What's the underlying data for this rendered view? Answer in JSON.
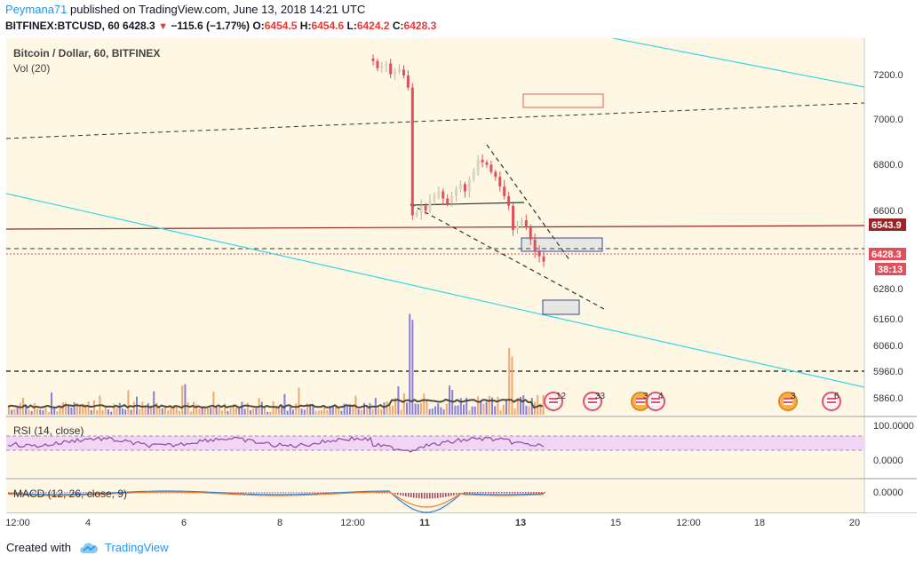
{
  "header": {
    "author": "Peymana71",
    "published_text": "published on TradingView.com, June 13, 2018 14:21 UTC",
    "symbol": "BITFINEX:BTCUSD, 60",
    "last": "6428.3",
    "change": "−115.6 (−1.77%)",
    "o_label": "O:",
    "o": "6454.5",
    "h_label": "H:",
    "h": "6454.6",
    "l_label": "L:",
    "l": "6424.2",
    "c_label": "C:",
    "c": "6428.3"
  },
  "panes": {
    "main": {
      "title": "Bitcoin / Dollar, 60, BITFINEX",
      "sub": "Vol (20)"
    },
    "rsi": {
      "title": "RSI (14, close)"
    },
    "macd": {
      "title": "MACD (12, 26, close, 9)"
    }
  },
  "price_axis": {
    "labels": [
      "7200.0",
      "7000.0",
      "6800.0",
      "6600.0",
      "6280.0",
      "6160.0",
      "6060.0",
      "5960.0",
      "5860.0"
    ],
    "tag_level": "6543.9",
    "tag_last": "6428.3",
    "tag_countdown": "38:13"
  },
  "rsi_axis": {
    "labels": [
      "100.0000",
      "0.0000"
    ]
  },
  "macd_axis": {
    "labels": [
      "0.0000"
    ]
  },
  "time_axis": {
    "labels": [
      "12:00",
      "4",
      "6",
      "8",
      "12:00",
      "11",
      "13",
      "15",
      "12:00",
      "18",
      "20"
    ]
  },
  "events": [
    {
      "icon": "us-flag-icon",
      "count": "12"
    },
    {
      "icon": "us-flag-icon",
      "count": "33"
    },
    {
      "icon": "coin-icon",
      "count": "3"
    },
    {
      "icon": "us-flag-icon",
      "count": "4"
    },
    {
      "icon": "coin-icon",
      "count": "3"
    },
    {
      "icon": "us-flag-icon",
      "count": "6"
    }
  ],
  "footer": {
    "created_with": "Created with",
    "brand": "TradingView"
  },
  "colors": {
    "background": "#fdf7e4",
    "up": "#d9d3c0",
    "down": "#e0505a",
    "cyan": "#35d6e6",
    "level": "#9b2525",
    "rsi_band": "#f1d5f5",
    "rsi_line": "#8e4a9b",
    "macd": "#2a7fd4",
    "signal": "#f57c2a"
  },
  "chart_data": {
    "type": "candlestick",
    "interval": "60",
    "symbol": "BTCUSD",
    "exchange": "BITFINEX",
    "price_axis_labels": [
      7200,
      7000,
      6800,
      6600,
      6280,
      6160,
      6060,
      5960,
      5860
    ],
    "level_lines": [
      6543.9,
      6428.3
    ],
    "last": {
      "open": 6454.5,
      "high": 6454.6,
      "low": 6424.2,
      "close": 6428.3
    },
    "closes": [
      7260,
      7230,
      7240,
      7250,
      7205,
      7215,
      7225,
      7200,
      7150,
      6620,
      6630,
      6660,
      6640,
      6680,
      6700,
      6720,
      6690,
      6670,
      6700,
      6730,
      6750,
      6720,
      6770,
      6800,
      6850,
      6840,
      6830,
      6800,
      6780,
      6740,
      6700,
      6660,
      6560,
      6580,
      6600,
      6570,
      6520,
      6470,
      6450,
      6428
    ],
    "rsi_range": [
      0,
      100
    ],
    "macd_zero": 0
  }
}
